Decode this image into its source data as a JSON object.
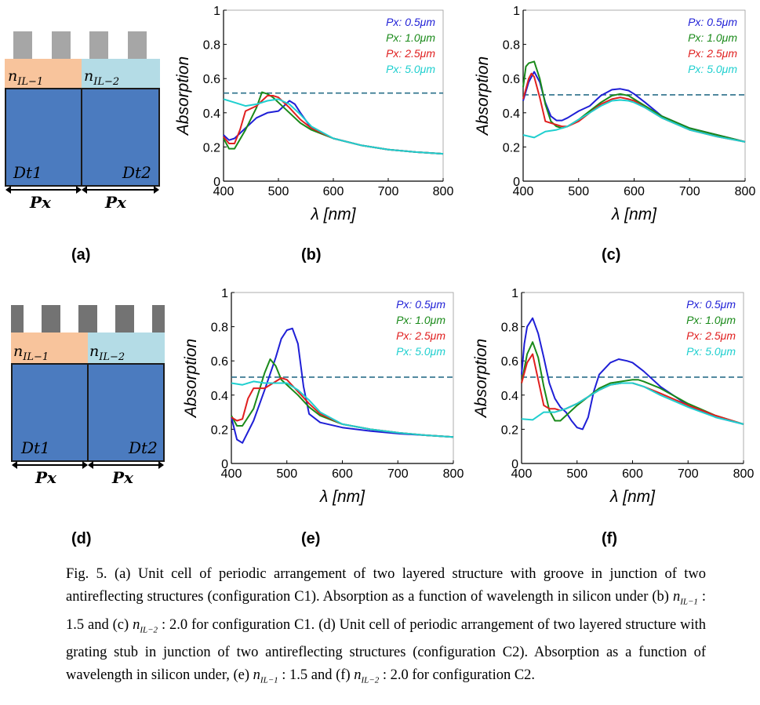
{
  "panels": {
    "a": {
      "label": "(a)",
      "n1": "n",
      "n1_sub": "IL−1",
      "n2": "n",
      "n2_sub": "IL−2",
      "dt1": "Dt1",
      "dt2": "Dt2",
      "px1": "Px",
      "px2": "Px"
    },
    "d": {
      "label": "(d)",
      "n1": "n",
      "n1_sub": "IL−1",
      "n2": "n",
      "n2_sub": "IL−2",
      "dt1": "Dt1",
      "dt2": "Dt2",
      "px1": "Px",
      "px2": "Px"
    },
    "b": {
      "label": "(b)"
    },
    "c": {
      "label": "(c)"
    },
    "e": {
      "label": "(e)"
    },
    "f": {
      "label": "(f)"
    }
  },
  "colors": {
    "substrate": "#4b7bbf",
    "layer1": "#f8c49c",
    "layer2": "#b4dce6",
    "stub_light": "#a6a6a6",
    "stub_dark": "#737373",
    "series": [
      "#1f1fd6",
      "#1a8a1a",
      "#e01f1f",
      "#1fcfcf"
    ],
    "dashed": "#2a6f8a"
  },
  "chart_data": [
    {
      "id": "b",
      "type": "line",
      "xlabel": "λ [nm]",
      "ylabel": "Absorption",
      "xlim": [
        400,
        800
      ],
      "ylim": [
        0,
        1
      ],
      "xticks": [
        "400",
        "500",
        "600",
        "700",
        "800"
      ],
      "yticks": [
        "0",
        "0.2",
        "0.4",
        "0.6",
        "0.8",
        "1"
      ],
      "dashed_line": 0.515,
      "legend": [
        "Px: 0.5μm",
        "Px: 1.0μm",
        "Px: 2.5μm",
        "Px: 5.0μm"
      ],
      "series": [
        {
          "name": "Px: 0.5μm",
          "x": [
            400,
            410,
            420,
            440,
            460,
            480,
            500,
            510,
            520,
            530,
            540,
            560,
            600,
            650,
            700,
            750,
            800
          ],
          "y": [
            0.27,
            0.24,
            0.25,
            0.31,
            0.37,
            0.4,
            0.41,
            0.44,
            0.47,
            0.45,
            0.4,
            0.31,
            0.25,
            0.21,
            0.185,
            0.17,
            0.16
          ]
        },
        {
          "name": "Px: 1.0μm",
          "x": [
            400,
            410,
            420,
            440,
            460,
            470,
            480,
            490,
            500,
            520,
            540,
            560,
            600,
            650,
            700,
            750,
            800
          ],
          "y": [
            0.25,
            0.19,
            0.19,
            0.3,
            0.43,
            0.52,
            0.51,
            0.49,
            0.46,
            0.4,
            0.34,
            0.3,
            0.25,
            0.21,
            0.185,
            0.17,
            0.16
          ]
        },
        {
          "name": "Px: 2.5μm",
          "x": [
            400,
            410,
            420,
            430,
            440,
            460,
            470,
            480,
            490,
            500,
            520,
            540,
            560,
            600,
            650,
            700,
            750,
            800
          ],
          "y": [
            0.26,
            0.22,
            0.22,
            0.3,
            0.41,
            0.44,
            0.47,
            0.5,
            0.5,
            0.49,
            0.43,
            0.36,
            0.31,
            0.25,
            0.21,
            0.185,
            0.17,
            0.16
          ]
        },
        {
          "name": "Px: 5.0μm",
          "x": [
            400,
            420,
            440,
            460,
            480,
            500,
            520,
            540,
            560,
            600,
            650,
            700,
            750,
            800
          ],
          "y": [
            0.48,
            0.46,
            0.44,
            0.45,
            0.47,
            0.48,
            0.45,
            0.39,
            0.32,
            0.25,
            0.21,
            0.185,
            0.17,
            0.16
          ]
        }
      ]
    },
    {
      "id": "c",
      "type": "line",
      "xlabel": "λ [nm]",
      "ylabel": "Absorption",
      "xlim": [
        400,
        800
      ],
      "ylim": [
        0,
        1
      ],
      "xticks": [
        "400",
        "500",
        "600",
        "700",
        "800"
      ],
      "yticks": [
        "0",
        "0.2",
        "0.4",
        "0.6",
        "0.8",
        "1"
      ],
      "dashed_line": 0.505,
      "legend": [
        "Px: 0.5μm",
        "Px: 1.0μm",
        "Px: 2.5μm",
        "Px: 5.0μm"
      ],
      "series": [
        {
          "name": "Px: 0.5μm",
          "x": [
            400,
            410,
            420,
            430,
            440,
            450,
            460,
            470,
            480,
            500,
            520,
            540,
            560,
            575,
            590,
            600,
            620,
            650,
            700,
            750,
            800
          ],
          "y": [
            0.47,
            0.58,
            0.64,
            0.58,
            0.46,
            0.38,
            0.355,
            0.355,
            0.37,
            0.41,
            0.44,
            0.5,
            0.535,
            0.54,
            0.53,
            0.51,
            0.46,
            0.38,
            0.31,
            0.27,
            0.23
          ]
        },
        {
          "name": "Px: 1.0μm",
          "x": [
            400,
            405,
            410,
            420,
            430,
            440,
            450,
            460,
            470,
            480,
            500,
            520,
            540,
            560,
            575,
            590,
            600,
            620,
            650,
            700,
            750,
            800
          ],
          "y": [
            0.55,
            0.67,
            0.69,
            0.7,
            0.6,
            0.45,
            0.35,
            0.32,
            0.31,
            0.32,
            0.36,
            0.41,
            0.46,
            0.5,
            0.51,
            0.5,
            0.48,
            0.44,
            0.38,
            0.31,
            0.27,
            0.23
          ]
        },
        {
          "name": "Px: 2.5μm",
          "x": [
            400,
            410,
            415,
            420,
            430,
            440,
            450,
            460,
            470,
            480,
            500,
            520,
            540,
            560,
            575,
            590,
            600,
            620,
            650,
            700,
            750,
            800
          ],
          "y": [
            0.48,
            0.6,
            0.63,
            0.61,
            0.49,
            0.35,
            0.34,
            0.33,
            0.32,
            0.32,
            0.35,
            0.4,
            0.45,
            0.48,
            0.49,
            0.48,
            0.47,
            0.43,
            0.37,
            0.3,
            0.26,
            0.23
          ]
        },
        {
          "name": "Px: 5.0μm",
          "x": [
            400,
            420,
            440,
            460,
            480,
            500,
            520,
            540,
            560,
            575,
            590,
            600,
            620,
            650,
            700,
            750,
            800
          ],
          "y": [
            0.27,
            0.255,
            0.29,
            0.3,
            0.32,
            0.36,
            0.4,
            0.44,
            0.47,
            0.475,
            0.47,
            0.46,
            0.43,
            0.37,
            0.3,
            0.26,
            0.23
          ]
        }
      ]
    },
    {
      "id": "e",
      "type": "line",
      "xlabel": "λ [nm]",
      "ylabel": "Absorption",
      "xlim": [
        400,
        800
      ],
      "ylim": [
        0,
        1
      ],
      "xticks": [
        "400",
        "500",
        "600",
        "700",
        "800"
      ],
      "yticks": [
        "0",
        "0.2",
        "0.4",
        "0.6",
        "0.8",
        "1"
      ],
      "dashed_line": 0.505,
      "legend": [
        "Px: 0.5μm",
        "Px: 1.0μm",
        "Px: 2.5μm",
        "Px: 5.0μm"
      ],
      "series": [
        {
          "name": "Px: 0.5μm",
          "x": [
            400,
            410,
            420,
            440,
            460,
            480,
            490,
            500,
            510,
            520,
            530,
            540,
            560,
            600,
            650,
            700,
            750,
            800
          ],
          "y": [
            0.27,
            0.14,
            0.12,
            0.25,
            0.43,
            0.62,
            0.73,
            0.78,
            0.79,
            0.7,
            0.45,
            0.29,
            0.24,
            0.21,
            0.19,
            0.175,
            0.165,
            0.155
          ]
        },
        {
          "name": "Px: 1.0μm",
          "x": [
            400,
            410,
            420,
            440,
            460,
            470,
            480,
            490,
            500,
            520,
            540,
            560,
            600,
            650,
            700,
            750,
            800
          ],
          "y": [
            0.28,
            0.22,
            0.22,
            0.32,
            0.53,
            0.61,
            0.57,
            0.49,
            0.46,
            0.4,
            0.33,
            0.28,
            0.23,
            0.2,
            0.18,
            0.165,
            0.155
          ]
        },
        {
          "name": "Px: 2.5μm",
          "x": [
            400,
            410,
            420,
            430,
            440,
            460,
            480,
            490,
            500,
            520,
            540,
            560,
            600,
            650,
            700,
            750,
            800
          ],
          "y": [
            0.27,
            0.25,
            0.26,
            0.38,
            0.44,
            0.44,
            0.48,
            0.5,
            0.49,
            0.42,
            0.35,
            0.29,
            0.23,
            0.2,
            0.18,
            0.165,
            0.155
          ]
        },
        {
          "name": "Px: 5.0μm",
          "x": [
            400,
            420,
            440,
            460,
            480,
            500,
            520,
            540,
            560,
            600,
            650,
            700,
            750,
            800
          ],
          "y": [
            0.47,
            0.46,
            0.48,
            0.47,
            0.47,
            0.47,
            0.43,
            0.37,
            0.3,
            0.23,
            0.2,
            0.18,
            0.165,
            0.155
          ]
        }
      ]
    },
    {
      "id": "f",
      "type": "line",
      "xlabel": "λ [nm]",
      "ylabel": "Absorption",
      "xlim": [
        400,
        800
      ],
      "ylim": [
        0,
        1
      ],
      "xticks": [
        "400",
        "500",
        "600",
        "700",
        "800"
      ],
      "yticks": [
        "0",
        "0.2",
        "0.4",
        "0.6",
        "0.8",
        "1"
      ],
      "dashed_line": 0.505,
      "legend": [
        "Px: 0.5μm",
        "Px: 1.0μm",
        "Px: 2.5μm",
        "Px: 5.0μm"
      ],
      "series": [
        {
          "name": "Px: 0.5μm",
          "x": [
            400,
            405,
            410,
            420,
            430,
            440,
            450,
            460,
            470,
            480,
            490,
            500,
            510,
            520,
            530,
            540,
            560,
            575,
            590,
            600,
            620,
            650,
            700,
            750,
            800
          ],
          "y": [
            0.52,
            0.7,
            0.8,
            0.85,
            0.76,
            0.62,
            0.47,
            0.38,
            0.33,
            0.3,
            0.25,
            0.21,
            0.2,
            0.27,
            0.42,
            0.52,
            0.59,
            0.61,
            0.6,
            0.59,
            0.54,
            0.45,
            0.34,
            0.27,
            0.23
          ]
        },
        {
          "name": "Px: 1.0μm",
          "x": [
            400,
            410,
            420,
            430,
            440,
            450,
            460,
            470,
            480,
            500,
            520,
            540,
            560,
            580,
            600,
            610,
            620,
            650,
            700,
            750,
            800
          ],
          "y": [
            0.47,
            0.64,
            0.71,
            0.62,
            0.45,
            0.31,
            0.25,
            0.25,
            0.28,
            0.34,
            0.39,
            0.44,
            0.47,
            0.48,
            0.49,
            0.49,
            0.48,
            0.44,
            0.35,
            0.28,
            0.23
          ]
        },
        {
          "name": "Px: 2.5μm",
          "x": [
            400,
            410,
            420,
            430,
            440,
            450,
            460,
            470,
            480,
            500,
            520,
            540,
            560,
            580,
            600,
            620,
            650,
            700,
            750,
            800
          ],
          "y": [
            0.47,
            0.59,
            0.64,
            0.49,
            0.34,
            0.32,
            0.32,
            0.31,
            0.32,
            0.35,
            0.39,
            0.43,
            0.46,
            0.47,
            0.47,
            0.45,
            0.41,
            0.34,
            0.28,
            0.23
          ]
        },
        {
          "name": "Px: 5.0μm",
          "x": [
            400,
            420,
            440,
            460,
            480,
            500,
            520,
            540,
            560,
            580,
            600,
            620,
            650,
            700,
            750,
            800
          ],
          "y": [
            0.26,
            0.255,
            0.3,
            0.3,
            0.32,
            0.35,
            0.39,
            0.43,
            0.46,
            0.47,
            0.47,
            0.45,
            0.4,
            0.33,
            0.27,
            0.23
          ]
        }
      ]
    }
  ],
  "caption": {
    "s1": "Fig. 5. (a) Unit cell of periodic arrangement of two layered structure with groove in junction of two antireflecting structures (configuration C1). Absorption as a function of wavelength in silicon under (b)",
    "n1": "n",
    "n1_sub": "IL−1",
    "v1": ": 1.5",
    "s2": "and (c)",
    "n2": "n",
    "n2_sub": "IL−2",
    "v2": ": 2.0",
    "s3": "for configuration C1. (d) Unit cell of periodic arrangement of two layered structure with grating stub in junction of two antireflecting structures (configuration C2). Absorption as a function of wavelength in silicon under, (e)",
    "n3": "n",
    "n3_sub": "IL−1",
    "v3": ": 1.5",
    "s4": "and (f)",
    "n4": "n",
    "n4_sub": "IL−2",
    "v4": ": 2.0",
    "s5": "for configuration C2."
  }
}
